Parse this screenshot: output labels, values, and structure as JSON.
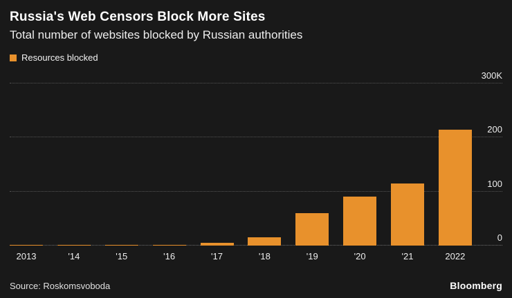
{
  "header": {
    "title": "Russia's Web Censors Block More Sites",
    "subtitle": "Total number of websites blocked by Russian authorities"
  },
  "legend": {
    "label": "Resources blocked",
    "color": "#E8912C"
  },
  "chart_data": {
    "type": "bar",
    "title": "Russia's Web Censors Block More Sites",
    "subtitle": "Total number of websites blocked by Russian authorities",
    "categories": [
      "2013",
      "'14",
      "'15",
      "'16",
      "'17",
      "'18",
      "'19",
      "'20",
      "'21",
      "2022"
    ],
    "values": [
      200,
      400,
      800,
      1500,
      5000,
      15000,
      60000,
      90000,
      115000,
      215000
    ],
    "series_name": "Resources blocked",
    "xlabel": "",
    "ylabel": "",
    "ylim": [
      0,
      300000
    ],
    "yticks": [
      {
        "value": 0,
        "label": "0"
      },
      {
        "value": 100000,
        "label": "100"
      },
      {
        "value": 200000,
        "label": "200"
      },
      {
        "value": 300000,
        "label": "300K"
      }
    ],
    "bar_color": "#E8912C",
    "grid": "dotted-horizontal",
    "legend_position": "top-left",
    "y_axis_side": "right"
  },
  "footer": {
    "source": "Source:  Roskomsvoboda",
    "brand": "Bloomberg"
  }
}
